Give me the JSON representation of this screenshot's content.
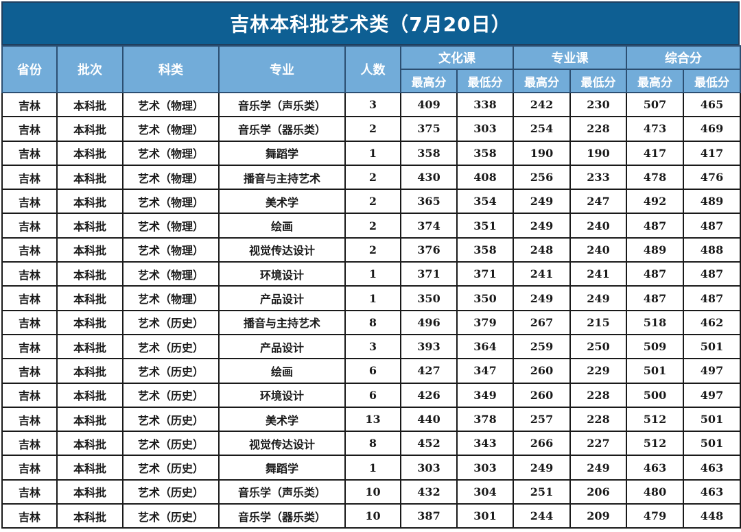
{
  "title": "吉林本科批艺术类（7月20日）",
  "header": {
    "columns": [
      "省份",
      "批次",
      "科类",
      "专业",
      "人数"
    ],
    "groups": [
      "文化课",
      "专业课",
      "综合分"
    ],
    "sub": [
      "最高分",
      "最低分"
    ]
  },
  "rows": [
    [
      "吉林",
      "本科批",
      "艺术（物理）",
      "音乐学（声乐类）",
      "3",
      "409",
      "338",
      "242",
      "230",
      "507",
      "465"
    ],
    [
      "吉林",
      "本科批",
      "艺术（物理）",
      "音乐学（器乐类）",
      "2",
      "375",
      "303",
      "254",
      "228",
      "473",
      "469"
    ],
    [
      "吉林",
      "本科批",
      "艺术（物理）",
      "舞蹈学",
      "1",
      "358",
      "358",
      "190",
      "190",
      "417",
      "417"
    ],
    [
      "吉林",
      "本科批",
      "艺术（物理）",
      "播音与主持艺术",
      "2",
      "430",
      "408",
      "256",
      "233",
      "478",
      "476"
    ],
    [
      "吉林",
      "本科批",
      "艺术（物理）",
      "美术学",
      "2",
      "365",
      "354",
      "249",
      "247",
      "492",
      "489"
    ],
    [
      "吉林",
      "本科批",
      "艺术（物理）",
      "绘画",
      "2",
      "374",
      "351",
      "249",
      "240",
      "487",
      "487"
    ],
    [
      "吉林",
      "本科批",
      "艺术（物理）",
      "视觉传达设计",
      "2",
      "376",
      "358",
      "248",
      "240",
      "489",
      "488"
    ],
    [
      "吉林",
      "本科批",
      "艺术（物理）",
      "环境设计",
      "1",
      "371",
      "371",
      "241",
      "241",
      "487",
      "487"
    ],
    [
      "吉林",
      "本科批",
      "艺术（物理）",
      "产品设计",
      "1",
      "350",
      "350",
      "249",
      "249",
      "487",
      "487"
    ],
    [
      "吉林",
      "本科批",
      "艺术（历史）",
      "播音与主持艺术",
      "8",
      "496",
      "379",
      "267",
      "215",
      "518",
      "462"
    ],
    [
      "吉林",
      "本科批",
      "艺术（历史）",
      "产品设计",
      "3",
      "393",
      "364",
      "259",
      "250",
      "509",
      "501"
    ],
    [
      "吉林",
      "本科批",
      "艺术（历史）",
      "绘画",
      "6",
      "427",
      "347",
      "260",
      "229",
      "501",
      "497"
    ],
    [
      "吉林",
      "本科批",
      "艺术（历史）",
      "环境设计",
      "6",
      "426",
      "349",
      "260",
      "228",
      "500",
      "497"
    ],
    [
      "吉林",
      "本科批",
      "艺术（历史）",
      "美术学",
      "13",
      "440",
      "378",
      "257",
      "228",
      "512",
      "501"
    ],
    [
      "吉林",
      "本科批",
      "艺术（历史）",
      "视觉传达设计",
      "8",
      "452",
      "343",
      "266",
      "227",
      "512",
      "501"
    ],
    [
      "吉林",
      "本科批",
      "艺术（历史）",
      "舞蹈学",
      "1",
      "303",
      "303",
      "249",
      "249",
      "463",
      "463"
    ],
    [
      "吉林",
      "本科批",
      "艺术（历史）",
      "音乐学（声乐类）",
      "10",
      "432",
      "304",
      "251",
      "206",
      "480",
      "463"
    ],
    [
      "吉林",
      "本科批",
      "艺术（历史）",
      "音乐学（器乐类）",
      "10",
      "387",
      "301",
      "244",
      "209",
      "479",
      "448"
    ]
  ],
  "colors": {
    "title_bg": "#0e5f93",
    "header_bg": "#72acd9",
    "text": "#1a1a1a"
  }
}
